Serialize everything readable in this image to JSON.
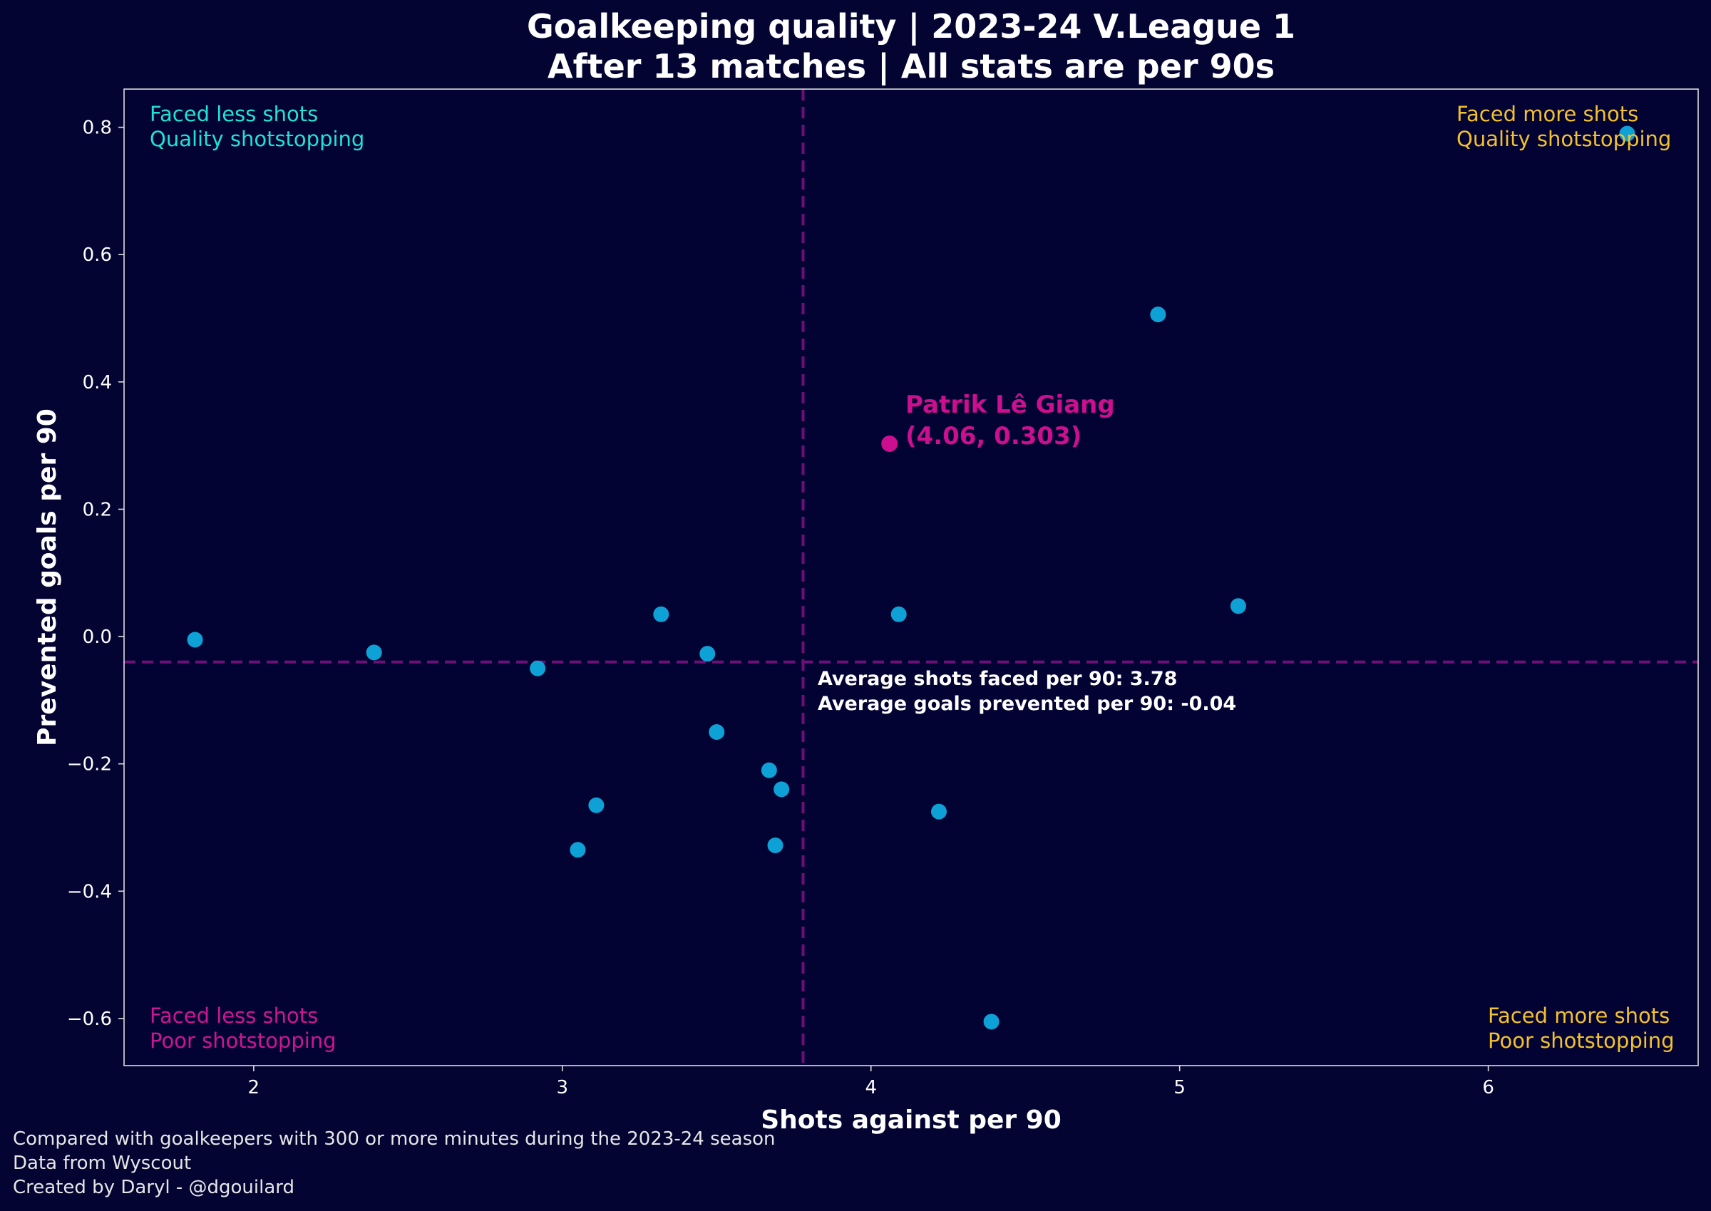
{
  "title_lines": [
    "Goalkeeping quality | 2023-24 V.League 1",
    "After 13 matches | All stats are per 90s"
  ],
  "footer_lines": [
    "Compared with goalkeepers with 300 or more minutes during the 2023-24 season",
    "Data from Wyscout",
    "Created by Daryl - @dgouilard"
  ],
  "quadrants": {
    "top_left": [
      "Faced less shots",
      "Quality shotstopping"
    ],
    "top_right": [
      "Faced more shots",
      "Quality shotstopping"
    ],
    "bottom_left": [
      "Faced less shots",
      "Poor shotstopping"
    ],
    "bottom_right": [
      "Faced more shots",
      "Poor shotstopping"
    ]
  },
  "average_text": [
    "Average shots faced per 90: 3.78",
    "Average goals prevented per 90: -0.04"
  ],
  "highlight_text": [
    "Patrik Lê Giang",
    "(4.06, 0.303)"
  ],
  "colors": {
    "background": "#040433",
    "plot_background": "#030333",
    "point": "#0ea1d6",
    "highlight": "#cc0f8f",
    "average_line": "#6e0f78",
    "quad_top_left": "#1fe3d5",
    "quad_top_right": "#f2c12e",
    "quad_bottom_left": "#cc1592",
    "quad_bottom_right": "#f2c12e",
    "text": "#ffffff",
    "spine": "#dddddd"
  },
  "chart_data": {
    "type": "scatter",
    "title": "Goalkeeping quality | 2023-24 V.League 1\nAfter 13 matches | All stats are per 90s",
    "xlabel": "Shots against per 90",
    "ylabel": "Prevented goals per 90",
    "xlim": [
      1.58,
      6.68
    ],
    "ylim": [
      -0.674,
      0.86
    ],
    "xticks": [
      2,
      3,
      4,
      5,
      6
    ],
    "xtick_labels": [
      "2",
      "3",
      "4",
      "5",
      "6"
    ],
    "yticks": [
      -0.6,
      -0.4,
      -0.2,
      0.0,
      0.2,
      0.4,
      0.6,
      0.8
    ],
    "ytick_labels": [
      "−0.6",
      "−0.4",
      "−0.2",
      "0.0",
      "0.2",
      "0.4",
      "0.6",
      "0.8"
    ],
    "grid": false,
    "average": {
      "x": 3.78,
      "y": -0.04
    },
    "points": [
      {
        "x": 1.81,
        "y": -0.005
      },
      {
        "x": 2.39,
        "y": -0.025
      },
      {
        "x": 2.92,
        "y": -0.05
      },
      {
        "x": 3.05,
        "y": -0.335
      },
      {
        "x": 3.11,
        "y": -0.265
      },
      {
        "x": 3.32,
        "y": 0.035
      },
      {
        "x": 3.47,
        "y": -0.027
      },
      {
        "x": 3.5,
        "y": -0.15
      },
      {
        "x": 3.67,
        "y": -0.21
      },
      {
        "x": 3.69,
        "y": -0.328
      },
      {
        "x": 3.71,
        "y": -0.24
      },
      {
        "x": 4.09,
        "y": 0.035
      },
      {
        "x": 4.22,
        "y": -0.275
      },
      {
        "x": 4.39,
        "y": -0.605
      },
      {
        "x": 4.93,
        "y": 0.506
      },
      {
        "x": 5.19,
        "y": 0.048
      },
      {
        "x": 6.45,
        "y": 0.79
      }
    ],
    "highlight": {
      "name": "Patrik Lê Giang",
      "x": 4.06,
      "y": 0.303
    }
  }
}
